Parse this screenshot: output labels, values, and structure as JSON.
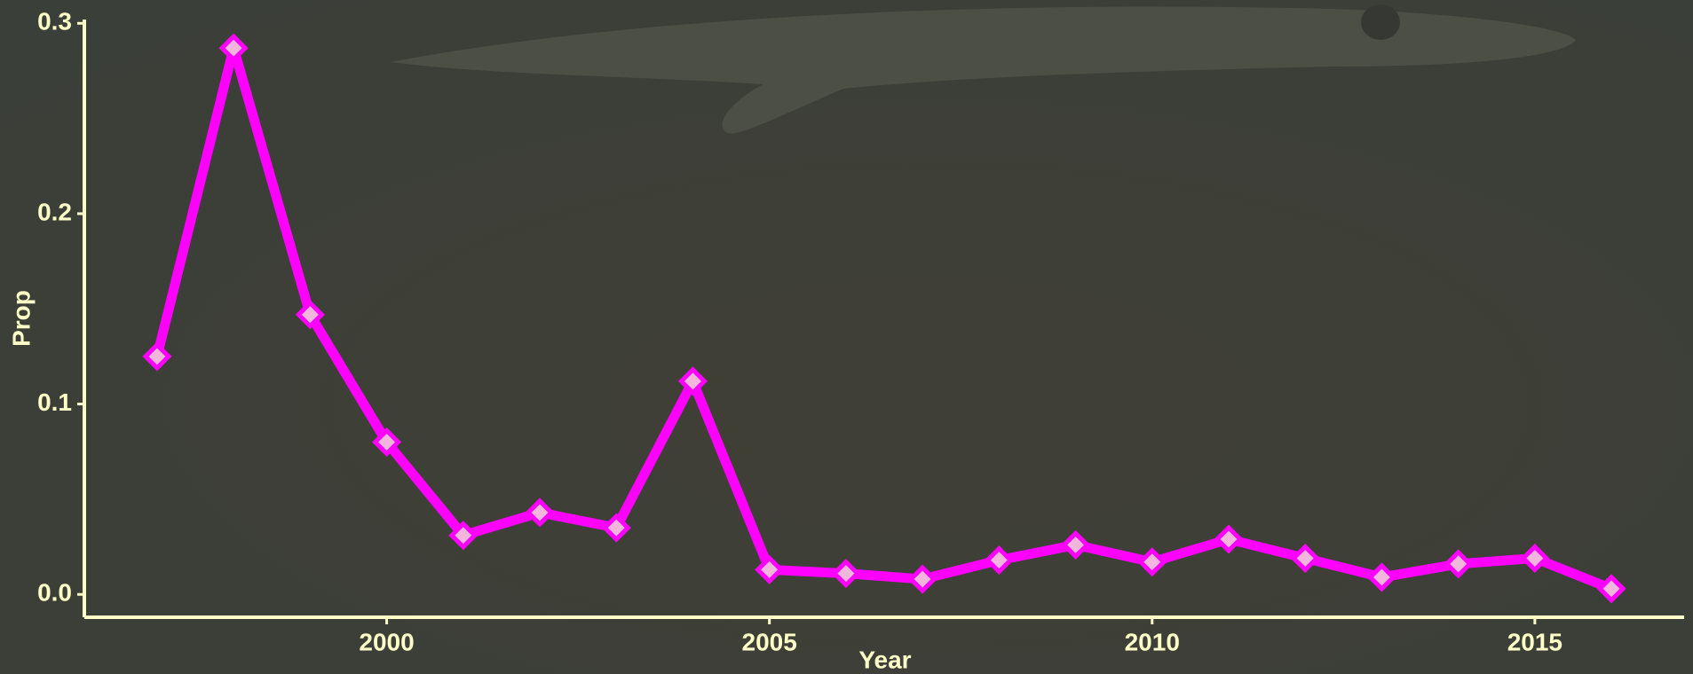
{
  "chart_data": {
    "type": "line",
    "x_label": "Year",
    "y_label": "Prop",
    "x": [
      1997,
      1998,
      1999,
      2000,
      2001,
      2002,
      2003,
      2004,
      2005,
      2006,
      2007,
      2008,
      2009,
      2010,
      2011,
      2012,
      2013,
      2014,
      2015,
      2016
    ],
    "series": [
      {
        "color": "#ff00ff",
        "marker_fill": "#f2b5dc",
        "values": [
          0.125,
          0.287,
          0.147,
          0.08,
          0.031,
          0.043,
          0.035,
          0.112,
          0.013,
          0.011,
          0.008,
          0.018,
          0.026,
          0.017,
          0.029,
          0.019,
          0.009,
          0.016,
          0.019,
          0.003
        ]
      }
    ],
    "xlim": [
      1996.05,
      2016.95
    ],
    "ylim": [
      -0.012,
      0.302
    ],
    "xticks": [
      2000,
      2005,
      2010,
      2015
    ],
    "yticks": [
      {
        "value": 0,
        "label": "0.0"
      },
      0.1,
      0.2,
      0.3
    ]
  }
}
